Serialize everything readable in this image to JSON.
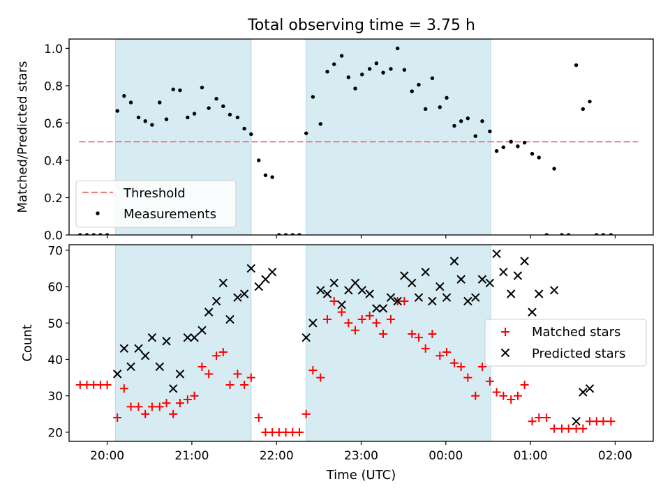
{
  "figure_title": "Total observing time = 3.75 h",
  "colors": {
    "shade": "#add8e6",
    "threshold": "#f08080",
    "measurement": "#000000",
    "matched": "#ff0000",
    "predicted": "#000000"
  },
  "chart_data": [
    {
      "type": "scatter",
      "title": "Total observing time = 3.75 h",
      "ylabel": "Matched/Predicted stars",
      "xlabel": "",
      "x_unit": "hours UTC (values beyond 24 wrap past midnight)",
      "xlim": [
        19.55,
        26.45
      ],
      "ylim": [
        0.0,
        1.05
      ],
      "yticks": [
        0.0,
        0.2,
        0.4,
        0.6,
        0.8,
        1.0
      ],
      "ytick_labels": [
        "0.0",
        "0.2",
        "0.4",
        "0.6",
        "0.8",
        "1.0"
      ],
      "xticks": [
        20,
        21,
        22,
        23,
        24,
        25,
        26
      ],
      "shaded_intervals": [
        [
          20.1,
          21.7
        ],
        [
          22.35,
          24.53
        ]
      ],
      "legend": {
        "placement": "lower-left",
        "entries": [
          "Threshold",
          "Measurements"
        ]
      },
      "series": [
        {
          "name": "Threshold",
          "kind": "dashed-line",
          "x": [
            19.67,
            26.27
          ],
          "y": [
            0.5,
            0.5
          ]
        },
        {
          "name": "Measurements",
          "kind": "dots",
          "points": [
            [
              19.68,
              0
            ],
            [
              19.76,
              0
            ],
            [
              19.84,
              0
            ],
            [
              19.92,
              0
            ],
            [
              20.0,
              0
            ],
            [
              20.12,
              0.665
            ],
            [
              20.2,
              0.745
            ],
            [
              20.28,
              0.71
            ],
            [
              20.37,
              0.63
            ],
            [
              20.45,
              0.61
            ],
            [
              20.53,
              0.59
            ],
            [
              20.62,
              0.71
            ],
            [
              20.7,
              0.62
            ],
            [
              20.78,
              0.78
            ],
            [
              20.86,
              0.775
            ],
            [
              20.95,
              0.63
            ],
            [
              21.03,
              0.65
            ],
            [
              21.12,
              0.79
            ],
            [
              21.2,
              0.68
            ],
            [
              21.29,
              0.73
            ],
            [
              21.37,
              0.69
            ],
            [
              21.45,
              0.645
            ],
            [
              21.54,
              0.63
            ],
            [
              21.62,
              0.57
            ],
            [
              21.7,
              0.54
            ],
            [
              21.79,
              0.4
            ],
            [
              21.87,
              0.32
            ],
            [
              21.95,
              0.31
            ],
            [
              22.03,
              0
            ],
            [
              22.11,
              0
            ],
            [
              22.19,
              0
            ],
            [
              22.27,
              0
            ],
            [
              22.35,
              0.545
            ],
            [
              22.43,
              0.74
            ],
            [
              22.52,
              0.595
            ],
            [
              22.6,
              0.875
            ],
            [
              22.68,
              0.915
            ],
            [
              22.77,
              0.96
            ],
            [
              22.85,
              0.845
            ],
            [
              22.93,
              0.785
            ],
            [
              23.01,
              0.86
            ],
            [
              23.1,
              0.89
            ],
            [
              23.18,
              0.92
            ],
            [
              23.26,
              0.87
            ],
            [
              23.35,
              0.89
            ],
            [
              23.43,
              1.0
            ],
            [
              23.51,
              0.885
            ],
            [
              23.6,
              0.77
            ],
            [
              23.68,
              0.805
            ],
            [
              23.76,
              0.675
            ],
            [
              23.84,
              0.84
            ],
            [
              23.93,
              0.685
            ],
            [
              24.01,
              0.735
            ],
            [
              24.1,
              0.585
            ],
            [
              24.18,
              0.61
            ],
            [
              24.26,
              0.625
            ],
            [
              24.35,
              0.53
            ],
            [
              24.43,
              0.61
            ],
            [
              24.52,
              0.555
            ],
            [
              24.6,
              0.45
            ],
            [
              24.68,
              0.47
            ],
            [
              24.77,
              0.5
            ],
            [
              24.85,
              0.475
            ],
            [
              24.93,
              0.495
            ],
            [
              25.02,
              0.435
            ],
            [
              25.1,
              0.415
            ],
            [
              25.19,
              0
            ],
            [
              25.28,
              0.355
            ],
            [
              25.37,
              0
            ],
            [
              25.45,
              0
            ],
            [
              25.54,
              0.91
            ],
            [
              25.62,
              0.675
            ],
            [
              25.7,
              0.715
            ],
            [
              25.78,
              0
            ],
            [
              25.86,
              0
            ],
            [
              25.95,
              0
            ]
          ]
        }
      ]
    },
    {
      "type": "scatter",
      "xlabel": "Time (UTC)",
      "ylabel": "Count",
      "x_unit": "hours UTC (values beyond 24 wrap past midnight)",
      "xlim": [
        19.55,
        26.45
      ],
      "ylim": [
        17.5,
        71.5
      ],
      "yticks": [
        20,
        30,
        40,
        50,
        60,
        70
      ],
      "ytick_labels": [
        "20",
        "30",
        "40",
        "50",
        "60",
        "70"
      ],
      "xticks": [
        20,
        21,
        22,
        23,
        24,
        25,
        26
      ],
      "xtick_labels": [
        "20:00",
        "21:00",
        "22:00",
        "23:00",
        "00:00",
        "01:00",
        "02:00"
      ],
      "shaded_intervals": [
        [
          20.1,
          21.7
        ],
        [
          22.35,
          24.53
        ]
      ],
      "legend": {
        "placement": "center-right",
        "entries": [
          "Matched stars",
          "Predicted stars"
        ]
      },
      "series": [
        {
          "name": "Matched stars",
          "marker": "plus",
          "points": [
            [
              19.68,
              33
            ],
            [
              19.76,
              33
            ],
            [
              19.84,
              33
            ],
            [
              19.92,
              33
            ],
            [
              20.0,
              33
            ],
            [
              20.12,
              24
            ],
            [
              20.2,
              32
            ],
            [
              20.28,
              27
            ],
            [
              20.37,
              27
            ],
            [
              20.45,
              25
            ],
            [
              20.53,
              27
            ],
            [
              20.62,
              27
            ],
            [
              20.7,
              28
            ],
            [
              20.78,
              25
            ],
            [
              20.86,
              28
            ],
            [
              20.95,
              29
            ],
            [
              21.03,
              30
            ],
            [
              21.12,
              38
            ],
            [
              21.2,
              36
            ],
            [
              21.29,
              41
            ],
            [
              21.37,
              42
            ],
            [
              21.45,
              33
            ],
            [
              21.54,
              36
            ],
            [
              21.62,
              33
            ],
            [
              21.7,
              35
            ],
            [
              21.79,
              24
            ],
            [
              21.87,
              20
            ],
            [
              21.95,
              20
            ],
            [
              22.03,
              20
            ],
            [
              22.11,
              20
            ],
            [
              22.19,
              20
            ],
            [
              22.27,
              20
            ],
            [
              22.35,
              25
            ],
            [
              22.43,
              37
            ],
            [
              22.52,
              35
            ],
            [
              22.6,
              51
            ],
            [
              22.68,
              56
            ],
            [
              22.77,
              53
            ],
            [
              22.85,
              50
            ],
            [
              22.93,
              48
            ],
            [
              23.01,
              51
            ],
            [
              23.1,
              52
            ],
            [
              23.18,
              50
            ],
            [
              23.26,
              47
            ],
            [
              23.35,
              51
            ],
            [
              23.43,
              56
            ],
            [
              23.51,
              56
            ],
            [
              23.6,
              47
            ],
            [
              23.68,
              46
            ],
            [
              23.76,
              43
            ],
            [
              23.84,
              47
            ],
            [
              23.93,
              41
            ],
            [
              24.01,
              42
            ],
            [
              24.1,
              39
            ],
            [
              24.18,
              38
            ],
            [
              24.26,
              35
            ],
            [
              24.35,
              30
            ],
            [
              24.43,
              38
            ],
            [
              24.52,
              34
            ],
            [
              24.6,
              31
            ],
            [
              24.68,
              30
            ],
            [
              24.77,
              29
            ],
            [
              24.85,
              30
            ],
            [
              24.93,
              33
            ],
            [
              25.02,
              23
            ],
            [
              25.1,
              24
            ],
            [
              25.19,
              24
            ],
            [
              25.28,
              21
            ],
            [
              25.37,
              21
            ],
            [
              25.45,
              21
            ],
            [
              25.54,
              21
            ],
            [
              25.62,
              21
            ],
            [
              25.7,
              23
            ],
            [
              25.78,
              23
            ],
            [
              25.86,
              23
            ],
            [
              25.95,
              23
            ]
          ]
        },
        {
          "name": "Predicted stars",
          "marker": "x",
          "points": [
            [
              20.12,
              36
            ],
            [
              20.2,
              43
            ],
            [
              20.28,
              38
            ],
            [
              20.37,
              43
            ],
            [
              20.45,
              41
            ],
            [
              20.53,
              46
            ],
            [
              20.62,
              38
            ],
            [
              20.7,
              45
            ],
            [
              20.78,
              32
            ],
            [
              20.86,
              36
            ],
            [
              20.95,
              46
            ],
            [
              21.03,
              46
            ],
            [
              21.12,
              48
            ],
            [
              21.2,
              53
            ],
            [
              21.29,
              56
            ],
            [
              21.37,
              61
            ],
            [
              21.45,
              51
            ],
            [
              21.54,
              57
            ],
            [
              21.62,
              58
            ],
            [
              21.7,
              65
            ],
            [
              21.79,
              60
            ],
            [
              21.87,
              62
            ],
            [
              21.95,
              64
            ],
            [
              22.35,
              46
            ],
            [
              22.43,
              50
            ],
            [
              22.52,
              59
            ],
            [
              22.6,
              58
            ],
            [
              22.68,
              61
            ],
            [
              22.77,
              55
            ],
            [
              22.85,
              59
            ],
            [
              22.93,
              61
            ],
            [
              23.01,
              59
            ],
            [
              23.1,
              58
            ],
            [
              23.18,
              54
            ],
            [
              23.26,
              54
            ],
            [
              23.35,
              57
            ],
            [
              23.43,
              56
            ],
            [
              23.51,
              63
            ],
            [
              23.6,
              61
            ],
            [
              23.68,
              57
            ],
            [
              23.76,
              64
            ],
            [
              23.84,
              56
            ],
            [
              23.93,
              60
            ],
            [
              24.01,
              57
            ],
            [
              24.1,
              67
            ],
            [
              24.18,
              62
            ],
            [
              24.26,
              56
            ],
            [
              24.35,
              57
            ],
            [
              24.43,
              62
            ],
            [
              24.52,
              61
            ],
            [
              24.6,
              69
            ],
            [
              24.68,
              64
            ],
            [
              24.77,
              58
            ],
            [
              24.85,
              63
            ],
            [
              24.93,
              67
            ],
            [
              25.02,
              53
            ],
            [
              25.1,
              58
            ],
            [
              25.28,
              59
            ],
            [
              25.54,
              23
            ],
            [
              25.62,
              31
            ],
            [
              25.7,
              32
            ]
          ]
        }
      ]
    }
  ]
}
